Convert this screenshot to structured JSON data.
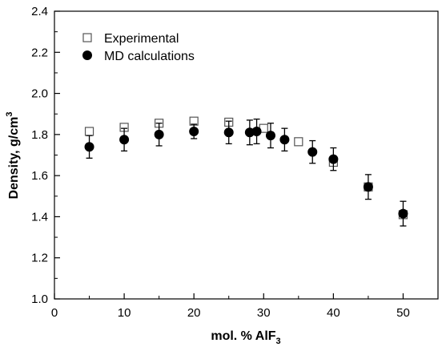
{
  "chart_data": {
    "type": "scatter",
    "xlabel": "mol. % AlF",
    "xlabel_sub": "3",
    "ylabel": "Density, g/cm",
    "ylabel_sup": "3",
    "xlim": [
      0,
      55
    ],
    "ylim": [
      1.0,
      2.4
    ],
    "x_ticks": [
      0,
      10,
      20,
      30,
      40,
      50
    ],
    "y_ticks": [
      1.0,
      1.2,
      1.4,
      1.6,
      1.8,
      2.0,
      2.2,
      2.4
    ],
    "y_tick_labels": [
      "1.0",
      "1.2",
      "1.4",
      "1.6",
      "1.8",
      "2.0",
      "2.2",
      "2.4"
    ],
    "legend_position": "top-left",
    "series": [
      {
        "name": "Experimental",
        "marker": "open-square",
        "color": "#555555",
        "points": [
          {
            "x": 5,
            "y": 1.815
          },
          {
            "x": 10,
            "y": 1.835
          },
          {
            "x": 15,
            "y": 1.855
          },
          {
            "x": 20,
            "y": 1.865
          },
          {
            "x": 25,
            "y": 1.86
          },
          {
            "x": 30,
            "y": 1.83
          },
          {
            "x": 35,
            "y": 1.765
          },
          {
            "x": 40,
            "y": 1.665
          },
          {
            "x": 45,
            "y": 1.545
          },
          {
            "x": 50,
            "y": 1.41
          }
        ]
      },
      {
        "name": "MD calculations",
        "marker": "filled-circle",
        "color": "#000000",
        "points": [
          {
            "x": 5,
            "y": 1.74,
            "err": 0.055
          },
          {
            "x": 10,
            "y": 1.775,
            "err": 0.055
          },
          {
            "x": 15,
            "y": 1.8,
            "err": 0.055
          },
          {
            "x": 20,
            "y": 1.815,
            "err": 0.035
          },
          {
            "x": 25,
            "y": 1.81,
            "err": 0.055
          },
          {
            "x": 28,
            "y": 1.81,
            "err": 0.06
          },
          {
            "x": 29,
            "y": 1.815,
            "err": 0.06
          },
          {
            "x": 31,
            "y": 1.795,
            "err": 0.06
          },
          {
            "x": 33,
            "y": 1.775,
            "err": 0.055
          },
          {
            "x": 37,
            "y": 1.715,
            "err": 0.055
          },
          {
            "x": 40,
            "y": 1.68,
            "err": 0.055
          },
          {
            "x": 45,
            "y": 1.545,
            "err": 0.06
          },
          {
            "x": 50,
            "y": 1.415,
            "err": 0.06
          }
        ]
      }
    ]
  }
}
